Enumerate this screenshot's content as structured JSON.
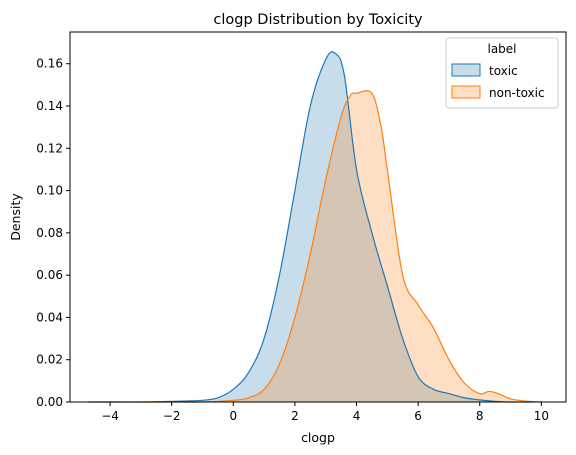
{
  "chart_data": {
    "type": "area",
    "title": "clogp Distribution by Toxicity",
    "xlabel": "clogp",
    "ylabel": "Density",
    "xlim": [
      -5.3,
      10.8
    ],
    "ylim": [
      0,
      0.175
    ],
    "xticks": [
      -4,
      -2,
      0,
      2,
      4,
      6,
      8,
      10
    ],
    "yticks": [
      0.0,
      0.02,
      0.04,
      0.06,
      0.08,
      0.1,
      0.12,
      0.14,
      0.16
    ],
    "ytick_labels": [
      "0.00",
      "0.02",
      "0.04",
      "0.06",
      "0.08",
      "0.10",
      "0.12",
      "0.14",
      "0.16"
    ],
    "grid": false,
    "legend": {
      "title": "label",
      "placement": "top-right"
    },
    "series": [
      {
        "name": "toxic",
        "color": "#1f77b4",
        "fill_color": "#c5dbec",
        "x": [
          -4.7,
          -4.0,
          -3.0,
          -2.0,
          -1.5,
          -1.0,
          -0.5,
          0.0,
          0.5,
          1.0,
          1.5,
          2.0,
          2.5,
          3.0,
          3.3,
          3.6,
          4.0,
          4.5,
          5.0,
          5.5,
          6.0,
          6.5,
          7.0,
          7.5,
          8.0,
          8.5,
          9.0,
          9.7
        ],
        "y": [
          0.0,
          0.0,
          0.0,
          0.0003,
          0.0005,
          0.0008,
          0.002,
          0.006,
          0.014,
          0.03,
          0.06,
          0.1,
          0.14,
          0.162,
          0.165,
          0.155,
          0.11,
          0.08,
          0.055,
          0.03,
          0.012,
          0.006,
          0.004,
          0.002,
          0.001,
          0.0003,
          0.0,
          0.0
        ]
      },
      {
        "name": "non-toxic",
        "color": "#ff7f0e",
        "fill_color": "#fddcbd",
        "x": [
          -4.7,
          -2.0,
          -1.0,
          0.0,
          0.5,
          1.0,
          1.5,
          2.0,
          2.5,
          3.0,
          3.5,
          3.8,
          4.0,
          4.5,
          4.8,
          5.0,
          5.5,
          6.0,
          6.5,
          7.0,
          7.5,
          8.0,
          8.3,
          8.6,
          9.0,
          9.5,
          10.0
        ],
        "y": [
          0.0,
          0.0,
          0.0,
          0.0008,
          0.002,
          0.006,
          0.018,
          0.04,
          0.07,
          0.105,
          0.135,
          0.145,
          0.146,
          0.146,
          0.13,
          0.11,
          0.06,
          0.046,
          0.035,
          0.02,
          0.009,
          0.004,
          0.005,
          0.004,
          0.0015,
          0.0004,
          0.0
        ]
      }
    ]
  }
}
